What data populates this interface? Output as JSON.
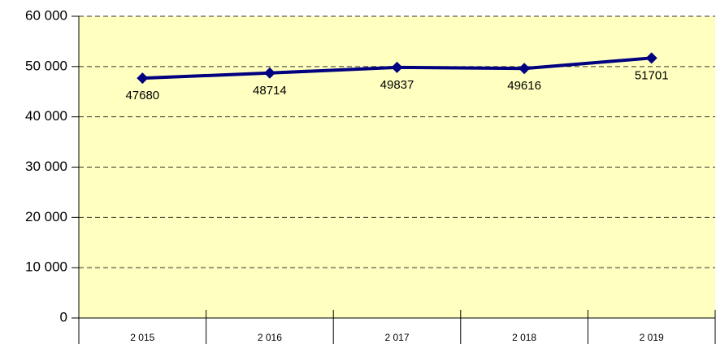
{
  "chart_data": {
    "type": "line",
    "categories": [
      "2 015",
      "2 016",
      "2 017",
      "2 018",
      "2 019"
    ],
    "series": [
      {
        "name": null,
        "color": "#000080",
        "values": [
          47680,
          48714,
          49837,
          49616,
          51701
        ]
      }
    ],
    "ylim": [
      0,
      60000
    ],
    "yticks": [
      0,
      {
        "value": 10000,
        "label": "10 000"
      },
      {
        "value": 20000,
        "label": "20 000"
      },
      {
        "value": 30000,
        "label": "30 000"
      },
      {
        "value": 40000,
        "label": "40 000"
      },
      {
        "value": 50000,
        "label": "50 000"
      },
      {
        "value": 60000,
        "label": "60 000"
      }
    ],
    "grid": true,
    "background": "#ffffc0"
  }
}
